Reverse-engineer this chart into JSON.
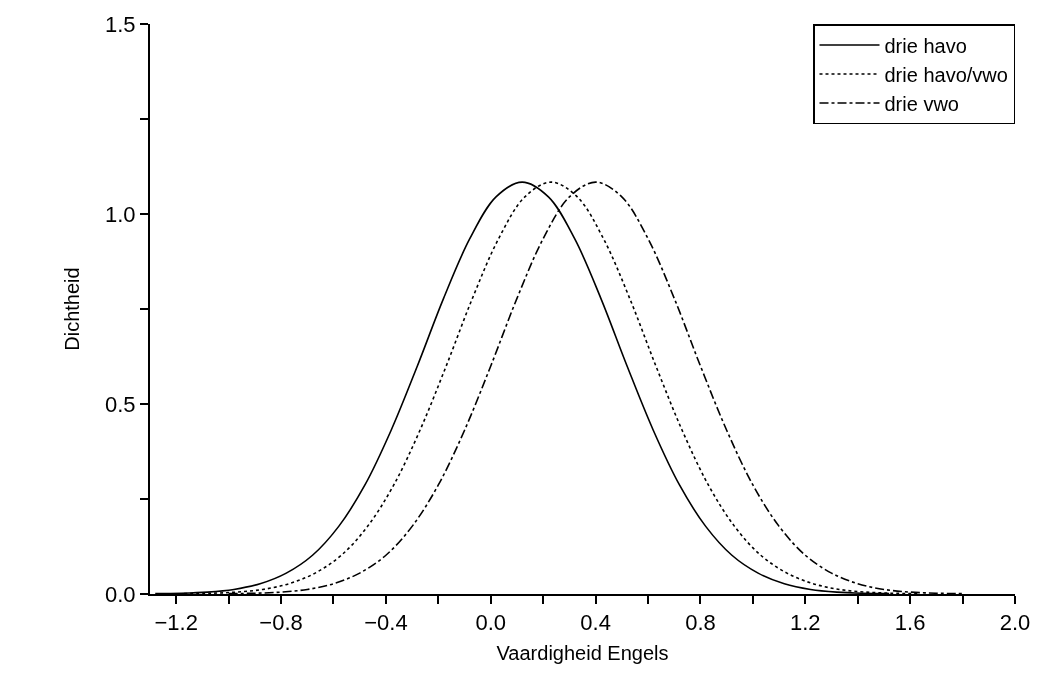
{
  "chart_data": {
    "type": "line",
    "xlabel": "Vaardigheid Engels",
    "ylabel": "Dichtheid",
    "xlim": [
      -1.3,
      2.0
    ],
    "ylim": [
      0,
      1.5
    ],
    "xticks": [
      {
        "value": -1.2,
        "label": "−1.2"
      },
      {
        "value": -1.0,
        "label": null
      },
      {
        "value": -0.8,
        "label": "−0.8"
      },
      {
        "value": -0.6,
        "label": null
      },
      {
        "value": -0.4,
        "label": "−0.4"
      },
      {
        "value": -0.2,
        "label": null
      },
      {
        "value": 0.0,
        "label": "0.0"
      },
      {
        "value": 0.2,
        "label": null
      },
      {
        "value": 0.4,
        "label": "0.4"
      },
      {
        "value": 0.6,
        "label": null
      },
      {
        "value": 0.8,
        "label": "0.8"
      },
      {
        "value": 1.0,
        "label": null
      },
      {
        "value": 1.2,
        "label": "1.2"
      },
      {
        "value": 1.4,
        "label": null
      },
      {
        "value": 1.6,
        "label": "1.6"
      },
      {
        "value": 1.8,
        "label": null
      },
      {
        "value": 2.0,
        "label": "2.0"
      }
    ],
    "yticks": [
      {
        "value": 0,
        "label": "0.0"
      },
      {
        "value": 0.25,
        "label": null
      },
      {
        "value": 0.5,
        "label": "0.5"
      },
      {
        "value": 0.75,
        "label": null
      },
      {
        "value": 1.0,
        "label": "1.0"
      },
      {
        "value": 1.25,
        "label": null
      },
      {
        "value": 1.5,
        "label": "1.5"
      }
    ],
    "grid": false,
    "legend": "top right",
    "marker": "none",
    "series": [
      {
        "name": "drie havo",
        "color": "#000000",
        "line_style": "solid",
        "x": [
          -1.28,
          -1.18,
          -1.08,
          -0.98,
          -0.88,
          -0.78,
          -0.68,
          -0.58,
          -0.48,
          -0.38,
          -0.28,
          -0.18,
          -0.08,
          0.02,
          0.12,
          0.22,
          0.32,
          0.42,
          0.52,
          0.62,
          0.72,
          0.82,
          0.92,
          1.02,
          1.12,
          1.22,
          1.32,
          1.42,
          1.52
        ],
        "values": [
          0.001,
          0.002,
          0.005,
          0.012,
          0.027,
          0.055,
          0.102,
          0.178,
          0.287,
          0.431,
          0.6,
          0.778,
          0.935,
          1.045,
          1.084,
          1.045,
          0.935,
          0.778,
          0.6,
          0.431,
          0.287,
          0.178,
          0.102,
          0.055,
          0.027,
          0.012,
          0.005,
          0.002,
          0.001
        ]
      },
      {
        "name": "drie havo/vwo",
        "color": "#000000",
        "line_style": "dotted",
        "x": [
          -1.17,
          -1.07,
          -0.97,
          -0.87,
          -0.77,
          -0.67,
          -0.57,
          -0.47,
          -0.37,
          -0.27,
          -0.17,
          -0.07,
          0.03,
          0.13,
          0.23,
          0.33,
          0.43,
          0.53,
          0.63,
          0.73,
          0.83,
          0.93,
          1.03,
          1.13,
          1.23,
          1.33,
          1.43,
          1.53,
          1.63
        ],
        "values": [
          0.001,
          0.002,
          0.005,
          0.012,
          0.027,
          0.055,
          0.102,
          0.178,
          0.287,
          0.431,
          0.6,
          0.778,
          0.935,
          1.045,
          1.084,
          1.045,
          0.935,
          0.778,
          0.6,
          0.431,
          0.287,
          0.178,
          0.102,
          0.055,
          0.027,
          0.012,
          0.005,
          0.002,
          0.001
        ]
      },
      {
        "name": "drie vwo",
        "color": "#000000",
        "line_style": "dashdot",
        "x": [
          -1.0,
          -0.9,
          -0.8,
          -0.7,
          -0.6,
          -0.5,
          -0.4,
          -0.3,
          -0.2,
          -0.1,
          0.0,
          0.1,
          0.2,
          0.3,
          0.4,
          0.5,
          0.6,
          0.7,
          0.8,
          0.9,
          1.0,
          1.1,
          1.2,
          1.3,
          1.4,
          1.5,
          1.6,
          1.7,
          1.8
        ],
        "values": [
          0.001,
          0.002,
          0.005,
          0.012,
          0.027,
          0.055,
          0.102,
          0.178,
          0.287,
          0.431,
          0.6,
          0.778,
          0.935,
          1.045,
          1.084,
          1.045,
          0.935,
          0.778,
          0.6,
          0.431,
          0.287,
          0.178,
          0.102,
          0.055,
          0.027,
          0.012,
          0.005,
          0.002,
          0.001
        ]
      }
    ]
  }
}
